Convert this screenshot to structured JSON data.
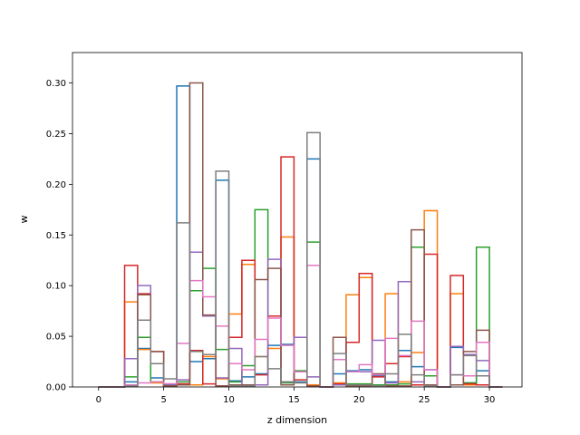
{
  "chart_data": {
    "type": "step-histogram",
    "title": "",
    "xlabel": "z dimension",
    "ylabel": "w",
    "xlim": [
      -2,
      32.5
    ],
    "ylim": [
      0,
      0.33
    ],
    "xticks": [
      0,
      5,
      10,
      15,
      20,
      25,
      30
    ],
    "yticks": [
      0.0,
      0.05,
      0.1,
      0.15,
      0.2,
      0.25,
      0.3
    ],
    "xtick_labels": [
      "0",
      "5",
      "10",
      "15",
      "20",
      "25",
      "30"
    ],
    "ytick_labels": [
      "0.00",
      "0.05",
      "0.10",
      "0.15",
      "0.20",
      "0.25",
      "0.30"
    ],
    "grid": false,
    "bin_edges": [
      0,
      1,
      2,
      3,
      4,
      5,
      6,
      7,
      8,
      9,
      10,
      11,
      12,
      13,
      14,
      15,
      16,
      17,
      18,
      19,
      20,
      21,
      22,
      23,
      24,
      25,
      26,
      27,
      28,
      29,
      30,
      31
    ],
    "series": [
      {
        "color": "#1f77b4",
        "values": [
          0,
          0,
          0.005,
          0.038,
          0.009,
          0.002,
          0.297,
          0.025,
          0.028,
          0.204,
          0.006,
          0.01,
          0.013,
          0.041,
          0.042,
          0.005,
          0.225,
          0,
          0.013,
          0.016,
          0.017,
          0.011,
          0.005,
          0.036,
          0.02,
          0.017,
          0,
          0.039,
          0.004,
          0.016,
          0
        ]
      },
      {
        "color": "#ff7f0e",
        "values": [
          0,
          0,
          0.084,
          0.037,
          0.004,
          0.001,
          0.002,
          0.002,
          0.03,
          0.008,
          0.072,
          0.121,
          0.03,
          0.038,
          0.148,
          0.015,
          0.002,
          0,
          0.004,
          0.091,
          0.108,
          0.002,
          0.092,
          0.005,
          0.034,
          0.174,
          0,
          0.092,
          0.002,
          0.002,
          0
        ]
      },
      {
        "color": "#2ca02c",
        "values": [
          0,
          0,
          0.01,
          0.049,
          0.005,
          0.001,
          0.005,
          0.095,
          0.117,
          0.037,
          0.005,
          0.021,
          0.175,
          0.07,
          0.004,
          0.016,
          0.143,
          0,
          0.002,
          0.003,
          0.003,
          0.002,
          0.002,
          0.003,
          0.138,
          0.011,
          0,
          0.002,
          0.004,
          0.138,
          0
        ]
      },
      {
        "color": "#d62728",
        "values": [
          0,
          0,
          0.12,
          0.092,
          0.035,
          0.001,
          0.003,
          0.036,
          0.003,
          0.001,
          0.049,
          0.125,
          0.012,
          0.07,
          0.227,
          0.007,
          0.001,
          0,
          0.003,
          0.044,
          0.112,
          0.01,
          0.023,
          0.03,
          0.002,
          0.131,
          0,
          0.11,
          0.003,
          0.002,
          0
        ]
      },
      {
        "color": "#9467bd",
        "values": [
          0,
          0,
          0.028,
          0.1,
          0.023,
          0.003,
          0.007,
          0.133,
          0.07,
          0.009,
          0.038,
          0.001,
          0.002,
          0.126,
          0.005,
          0.049,
          0.01,
          0,
          0.002,
          0.015,
          0.015,
          0.046,
          0.004,
          0.104,
          0.005,
          0.002,
          0,
          0.04,
          0.032,
          0.026,
          0
        ]
      },
      {
        "color": "#8c564b",
        "values": [
          0,
          0,
          0.001,
          0.091,
          0.035,
          0.001,
          0.002,
          0.3,
          0.071,
          0.001,
          0.002,
          0.002,
          0.106,
          0.117,
          0.002,
          0.015,
          0.001,
          0,
          0.049,
          0.001,
          0.001,
          0.013,
          0.001,
          0.001,
          0.155,
          0.002,
          0,
          0.002,
          0.035,
          0.056,
          0
        ]
      },
      {
        "color": "#e377c2",
        "values": [
          0,
          0,
          0.002,
          0.004,
          0.005,
          0.003,
          0.043,
          0.105,
          0.089,
          0.06,
          0.023,
          0.017,
          0.047,
          0.068,
          0.041,
          0.015,
          0.12,
          0,
          0.027,
          0.015,
          0.022,
          0.012,
          0.048,
          0.031,
          0.065,
          0.017,
          0,
          0.012,
          0.011,
          0.044,
          0
        ]
      },
      {
        "color": "#7f7f7f",
        "values": [
          0,
          0,
          0.001,
          0.066,
          0.023,
          0.008,
          0.162,
          0.035,
          0.032,
          0.213,
          0.001,
          0.001,
          0.03,
          0.018,
          0.005,
          0.004,
          0.251,
          0,
          0.033,
          0.002,
          0.002,
          0.001,
          0.013,
          0.052,
          0.012,
          0.001,
          0,
          0.012,
          0.031,
          0.011,
          0
        ]
      }
    ]
  }
}
